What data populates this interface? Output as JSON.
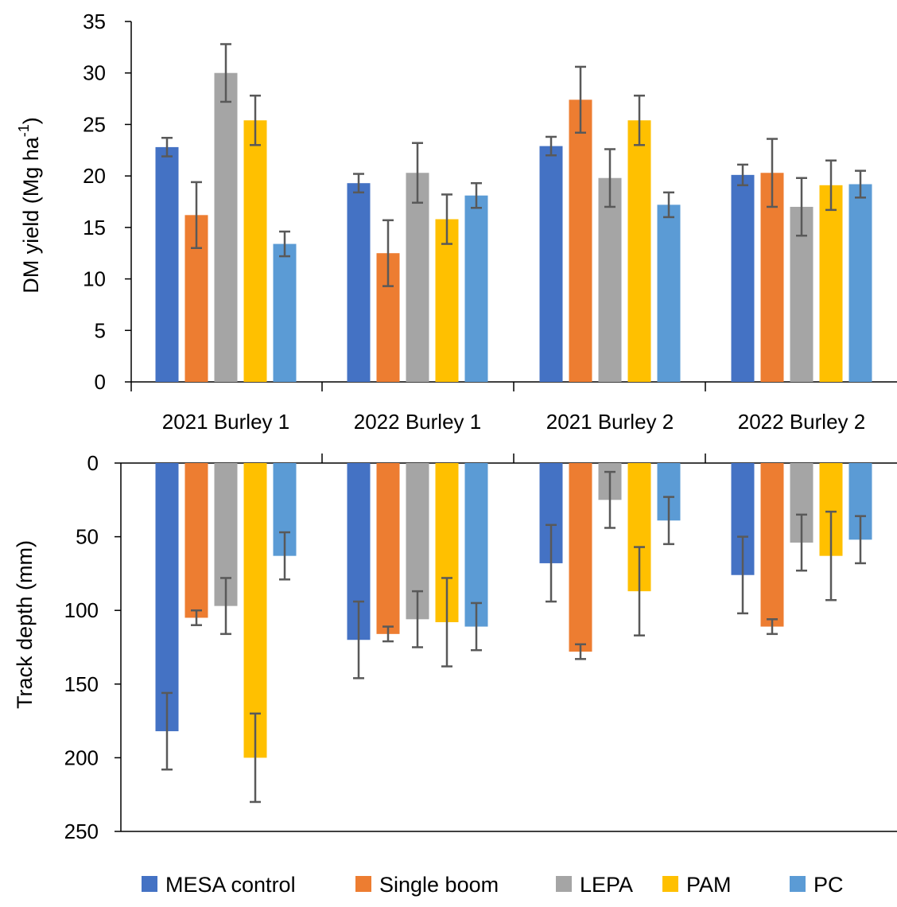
{
  "chart_data": [
    {
      "type": "bar",
      "panel": "top",
      "ylabel": "DM yield (Mg ha",
      "ylabel_sup": "-1",
      "ylabel_close": ")",
      "ylim": [
        0,
        35
      ],
      "yticks": [
        0,
        5,
        10,
        15,
        20,
        25,
        30,
        35
      ],
      "categories": [
        "2021 Burley 1",
        "2022 Burley 1",
        "2021 Burley 2",
        "2022 Burley 2"
      ],
      "series": [
        {
          "name": "MESA control",
          "values": [
            22.8,
            19.3,
            22.9,
            20.1
          ],
          "errors": [
            0.9,
            0.9,
            0.9,
            1.0
          ]
        },
        {
          "name": "Single boom",
          "values": [
            16.2,
            12.5,
            27.4,
            20.3
          ],
          "errors": [
            3.2,
            3.2,
            3.2,
            3.3
          ]
        },
        {
          "name": "LEPA",
          "values": [
            30.0,
            20.3,
            19.8,
            17.0
          ],
          "errors": [
            2.8,
            2.9,
            2.8,
            2.8
          ]
        },
        {
          "name": "PAM",
          "values": [
            25.4,
            15.8,
            25.4,
            19.1
          ],
          "errors": [
            2.4,
            2.4,
            2.4,
            2.4
          ]
        },
        {
          "name": "PC",
          "values": [
            13.4,
            18.1,
            17.2,
            19.2
          ],
          "errors": [
            1.2,
            1.2,
            1.2,
            1.3
          ]
        }
      ]
    },
    {
      "type": "bar",
      "panel": "bottom",
      "ylabel": "Track depth (mm)",
      "ylim": [
        0,
        250
      ],
      "y_inverted": true,
      "yticks": [
        0,
        50,
        100,
        150,
        200,
        250
      ],
      "categories": [
        "2021 Burley 1",
        "2022 Burley 1",
        "2021 Burley 2",
        "2022 Burley 2"
      ],
      "series": [
        {
          "name": "MESA control",
          "values": [
            182,
            120,
            68,
            76
          ],
          "errors": [
            26,
            26,
            26,
            26
          ]
        },
        {
          "name": "Single boom",
          "values": [
            105,
            116,
            128,
            111
          ],
          "errors": [
            5,
            5,
            5,
            5
          ]
        },
        {
          "name": "LEPA",
          "values": [
            97,
            106,
            25,
            54
          ],
          "errors": [
            19,
            19,
            19,
            19
          ]
        },
        {
          "name": "PAM",
          "values": [
            200,
            108,
            87,
            63
          ],
          "errors": [
            30,
            30,
            30,
            30
          ]
        },
        {
          "name": "PC",
          "values": [
            63,
            111,
            39,
            52
          ],
          "errors": [
            16,
            16,
            16,
            16
          ]
        }
      ]
    }
  ],
  "legend": {
    "placement": "bottom",
    "items": [
      "MESA control",
      "Single boom",
      "LEPA",
      "PAM",
      "PC"
    ]
  },
  "colors": {
    "MESA control": "#4472c4",
    "Single boom": "#ed7d31",
    "LEPA": "#a5a5a5",
    "PAM": "#ffc000",
    "PC": "#5b9bd5",
    "error_bar": "#595959",
    "axis": "#000000"
  }
}
